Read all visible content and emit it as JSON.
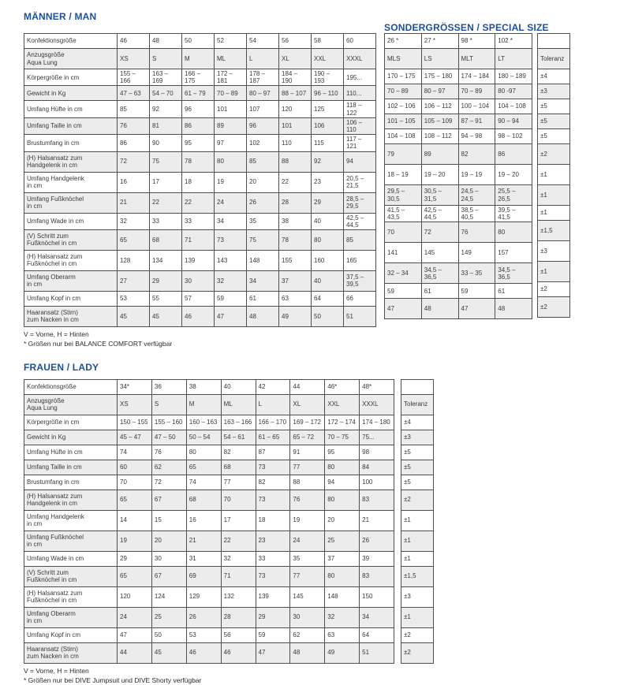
{
  "colors": {
    "title_blue": "#1d4f9c",
    "stripe_gray": "#ececec",
    "border_gray": "#4f4f4f",
    "background": "#ffffff"
  },
  "row_labels": [
    "Konfektionsgröße",
    "Anzugsgröße\nAqua Lung",
    "Körpergröße in cm",
    "Gewicht in Kg",
    "Umfang Hüfte in cm",
    "Umfang Taille in cm",
    "Brustumfang in cm",
    "(H) Halsansatz zum\nHandgelenk in cm",
    "Umfang Handgelenk\nin cm",
    "Umfang Fußknöchel\nin cm",
    "Umfang Wade in cm",
    "(V) Schritt zum\nFußknöchel in cm",
    "(H) Halsansatz zum\nFußknöchel in cm",
    "Umfang Oberarm\nin cm",
    "Umfang Kopf in cm",
    "Haaransatz (Stirn)\nzum Nacken in cm"
  ],
  "men": {
    "title": "MÄNNER / MAN",
    "special_title": "SONDERGRÖSSEN / SPECIAL SIZE",
    "main_cells": [
      [
        "46",
        "48",
        "50",
        "52",
        "54",
        "56",
        "58",
        "60"
      ],
      [
        "XS",
        "S",
        "M",
        "ML",
        "L",
        "XL",
        "XXL",
        "XXXL"
      ],
      [
        "155 – 166",
        "163 – 169",
        "166 – 175",
        "172 – 181",
        "178 – 187",
        "184 – 190",
        "190 – 193",
        "195..."
      ],
      [
        "47 – 63",
        "54 – 70",
        "61 – 79",
        "70 – 89",
        "80 – 97",
        "88 – 107",
        "96 – 110",
        "110..."
      ],
      [
        "85",
        "92",
        "96",
        "101",
        "107",
        "120",
        "125",
        "118 – 122"
      ],
      [
        "76",
        "81",
        "86",
        "89",
        "96",
        "101",
        "106",
        "106 – 110"
      ],
      [
        "86",
        "90",
        "95",
        "97",
        "102",
        "110",
        "115",
        "117 – 121"
      ],
      [
        "72",
        "75",
        "78",
        "80",
        "85",
        "88",
        "92",
        "94"
      ],
      [
        "16",
        "17",
        "18",
        "19",
        "20",
        "22",
        "23",
        "20,5 – 21,5"
      ],
      [
        "21",
        "22",
        "22",
        "24",
        "26",
        "28",
        "29",
        "28,5 – 29,5"
      ],
      [
        "32",
        "33",
        "33",
        "34",
        "35",
        "38",
        "40",
        "42,5 – 44,5"
      ],
      [
        "65",
        "68",
        "71",
        "73",
        "75",
        "78",
        "80",
        "85"
      ],
      [
        "128",
        "134",
        "139",
        "143",
        "148",
        "155",
        "160",
        "165"
      ],
      [
        "27",
        "29",
        "30",
        "32",
        "34",
        "37",
        "40",
        "37,5 – 39,5"
      ],
      [
        "53",
        "55",
        "57",
        "59",
        "61",
        "63",
        "64",
        "66"
      ],
      [
        "45",
        "45",
        "46",
        "47",
        "48",
        "49",
        "50",
        "51"
      ]
    ],
    "special_cells": [
      [
        "26 *",
        "27 *",
        "98 *",
        "102 *"
      ],
      [
        "MLS",
        "LS",
        "MLT",
        "LT"
      ],
      [
        "170 – 175",
        "175 – 180",
        "174 – 184",
        "180 – 189"
      ],
      [
        "70 – 89",
        "80 – 97",
        "70 – 89",
        "80 -97"
      ],
      [
        "102 – 106",
        "106 – 112",
        "100 – 104",
        "104 – 108"
      ],
      [
        "101 – 105",
        "105 – 109",
        "87 – 91",
        "90 – 94"
      ],
      [
        "104 – 108",
        "108 – 112",
        "94 – 98",
        "98 – 102"
      ],
      [
        "79",
        "89",
        "82",
        "86"
      ],
      [
        "18 – 19",
        "19 – 20",
        "19 – 19",
        "19 – 20"
      ],
      [
        "29,5 – 30,5",
        "30,5 – 31,5",
        "24,5 – 24,5",
        "25,5 – 26,5"
      ],
      [
        "41,5 – 43,5",
        "42,5 – 44,5",
        "38,5 – 40,5",
        "39,5 – 41,5"
      ],
      [
        "70",
        "72",
        "76",
        "80"
      ],
      [
        "141",
        "145",
        "149",
        "157"
      ],
      [
        "32 – 34",
        "34,5 – 36,5",
        "33 – 35",
        "34,5 – 36,5"
      ],
      [
        "59",
        "61",
        "59",
        "61"
      ],
      [
        "47",
        "48",
        "47",
        "48"
      ]
    ],
    "toleranz_cells": [
      "",
      "Toleranz",
      "±4",
      "±3",
      "±5",
      "±5",
      "±5",
      "±2",
      "±1",
      "±1",
      "±1",
      "±1,5",
      "±3",
      "±1",
      "±2",
      "±2"
    ],
    "footnotes": [
      "V = Vorne, H = Hinten",
      "* Größen nur bei BALANCE COMFORT verfügbar"
    ]
  },
  "women": {
    "title": "FRAUEN / LADY",
    "main_cells": [
      [
        "34*",
        "36",
        "38",
        "40",
        "42",
        "44",
        "46*",
        "48*"
      ],
      [
        "XS",
        "S",
        "M",
        "ML",
        "L",
        "XL",
        "XXL",
        "XXXL"
      ],
      [
        "150 – 155",
        "155 – 160",
        "160 – 163",
        "163 – 166",
        "166 – 170",
        "169 – 172",
        "172 – 174",
        "174 – 180"
      ],
      [
        "45 – 47",
        "47 – 50",
        "50 – 54",
        "54 – 61",
        "61 – 65",
        "65 – 72",
        "70 – 75",
        "75..."
      ],
      [
        "74",
        "76",
        "80",
        "82",
        "87",
        "91",
        "95",
        "98"
      ],
      [
        "60",
        "62",
        "65",
        "68",
        "73",
        "77",
        "80",
        "84"
      ],
      [
        "70",
        "72",
        "74",
        "77",
        "82",
        "88",
        "94",
        "100"
      ],
      [
        "65",
        "67",
        "68",
        "70",
        "73",
        "76",
        "80",
        "83"
      ],
      [
        "14",
        "15",
        "16",
        "17",
        "18",
        "19",
        "20",
        "21"
      ],
      [
        "19",
        "20",
        "21",
        "22",
        "23",
        "24",
        "25",
        "26"
      ],
      [
        "29",
        "30",
        "31",
        "32",
        "33",
        "35",
        "37",
        "39"
      ],
      [
        "65",
        "67",
        "69",
        "71",
        "73",
        "77",
        "80",
        "83"
      ],
      [
        "120",
        "124",
        "129",
        "132",
        "139",
        "145",
        "148",
        "150"
      ],
      [
        "24",
        "25",
        "26",
        "28",
        "29",
        "30",
        "32",
        "34"
      ],
      [
        "47",
        "50",
        "53",
        "56",
        "59",
        "62",
        "63",
        "64"
      ],
      [
        "44",
        "45",
        "46",
        "46",
        "47",
        "48",
        "49",
        "51"
      ]
    ],
    "toleranz_cells": [
      "",
      "Toleranz",
      "±4",
      "±3",
      "±5",
      "±5",
      "±5",
      "±2",
      "±1",
      "±1",
      "±1",
      "±1,5",
      "±3",
      "±1",
      "±2",
      "±2"
    ],
    "footnotes": [
      "V = Vorne, H = Hinten",
      "* Größen nur bei DIVE Jumpsuit und DIVE Shorty verfügbar"
    ]
  }
}
